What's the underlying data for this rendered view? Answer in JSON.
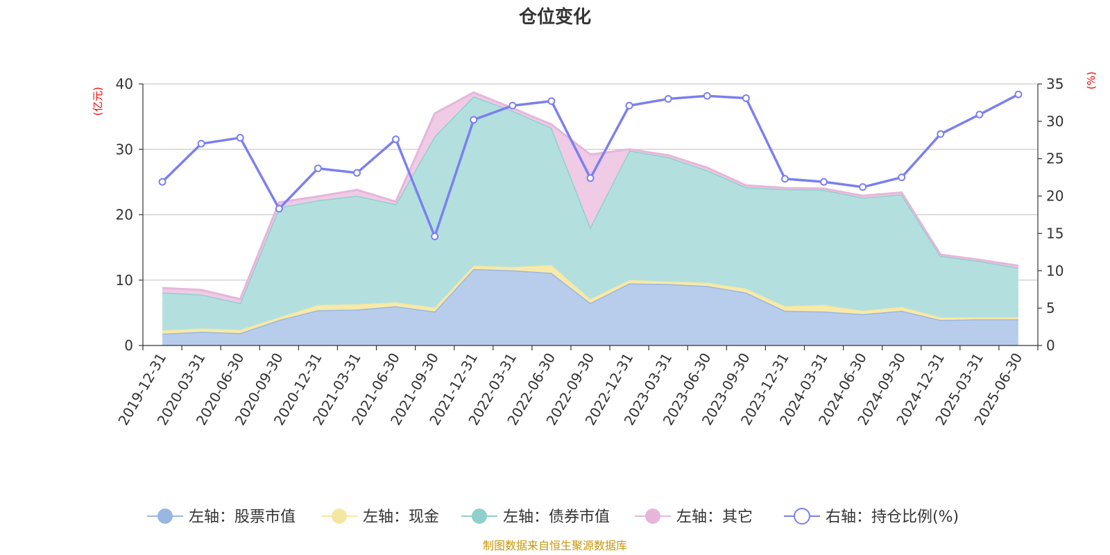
{
  "chart_data": {
    "type": "area",
    "title": "仓位变化",
    "source": "制图数据来自恒生聚源数据库",
    "left_axis": {
      "unit": "(亿元)",
      "range": [
        0,
        40
      ],
      "ticks": [
        "0",
        "10",
        "20",
        "30",
        "40"
      ]
    },
    "right_axis": {
      "unit": "(%)",
      "range": [
        0,
        35
      ],
      "ticks": [
        "0",
        "5",
        "10",
        "15",
        "20",
        "25",
        "30",
        "35"
      ]
    },
    "grid": true,
    "legend_position": "bottom",
    "categories": [
      "2019-12-31",
      "2020-03-31",
      "2020-06-30",
      "2020-09-30",
      "2020-12-31",
      "2021-03-31",
      "2021-06-30",
      "2021-09-30",
      "2021-12-31",
      "2022-03-31",
      "2022-06-30",
      "2022-09-30",
      "2022-12-31",
      "2023-03-31",
      "2023-06-30",
      "2023-09-30",
      "2023-12-31",
      "2024-03-31",
      "2024-06-30",
      "2024-09-30",
      "2024-12-31",
      "2025-03-31",
      "2025-06-30"
    ],
    "series": [
      {
        "name": "左轴：股票市值",
        "axis": "left",
        "type": "area",
        "color": "#9ab6e2",
        "fill": "#b8cdeb",
        "values": [
          1.8,
          2.1,
          1.9,
          3.9,
          5.4,
          5.5,
          6.0,
          5.2,
          11.7,
          11.5,
          11.1,
          6.5,
          9.5,
          9.4,
          9.1,
          8.1,
          5.3,
          5.2,
          4.8,
          5.3,
          3.9,
          4.0,
          4.0
        ]
      },
      {
        "name": "左轴：现金",
        "axis": "left",
        "type": "area",
        "color": "#f5e6a1",
        "fill": "#f7eaa8",
        "values": [
          0.5,
          0.5,
          0.5,
          0.4,
          0.8,
          0.8,
          0.6,
          0.6,
          0.5,
          0.5,
          1.2,
          0.6,
          0.5,
          0.4,
          0.5,
          0.6,
          0.7,
          1.0,
          0.5,
          0.6,
          0.4,
          0.3,
          0.3
        ]
      },
      {
        "name": "左轴：债券市值",
        "axis": "left",
        "type": "area",
        "color": "#8fd0cd",
        "fill": "#b3e0df",
        "values": [
          5.8,
          5.2,
          4.1,
          16.8,
          16.0,
          16.6,
          15.0,
          26.2,
          25.9,
          23.9,
          21.0,
          11.0,
          19.8,
          19.0,
          17.2,
          15.5,
          17.9,
          17.6,
          17.3,
          17.2,
          9.4,
          8.6,
          7.6
        ]
      },
      {
        "name": "左轴：其它",
        "axis": "left",
        "type": "area",
        "color": "#e6b6da",
        "fill": "#efcbe5",
        "values": [
          0.7,
          0.7,
          0.6,
          0.8,
          0.6,
          0.9,
          0.4,
          3.5,
          0.6,
          0.4,
          0.5,
          11.1,
          0.2,
          0.3,
          0.4,
          0.3,
          0.2,
          0.2,
          0.3,
          0.3,
          0.2,
          0.2,
          0.3
        ]
      },
      {
        "name": "右轴：持仓比例(%)",
        "axis": "right",
        "type": "line",
        "color": "#7b7ff0",
        "values": [
          21.9,
          27.0,
          27.8,
          18.3,
          23.7,
          23.1,
          27.6,
          14.6,
          30.2,
          32.1,
          32.7,
          22.4,
          32.1,
          33.0,
          33.4,
          33.1,
          22.3,
          21.9,
          21.2,
          22.5,
          28.3,
          30.9,
          33.6
        ]
      }
    ]
  }
}
